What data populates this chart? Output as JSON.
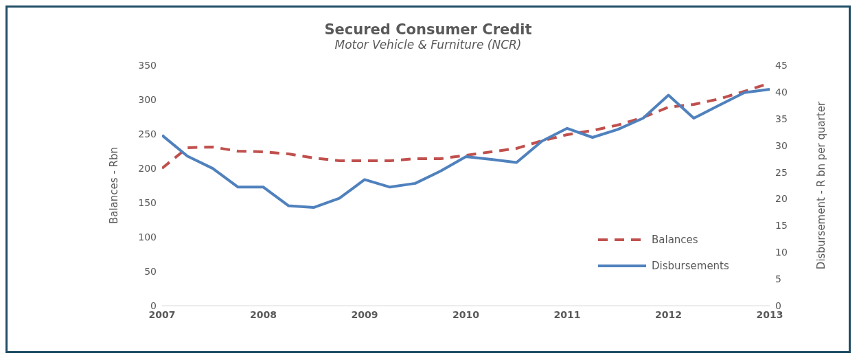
{
  "chart_data": {
    "type": "line",
    "title": "Secured Consumer Credit",
    "subtitle": "Motor Vehicle & Furniture (NCR)",
    "ylabel": "Balances - Rbn",
    "y2label": "Disbursement - R bn per quarter",
    "x": [
      2007,
      2007.25,
      2007.5,
      2007.75,
      2008,
      2008.25,
      2008.5,
      2008.75,
      2009,
      2009.25,
      2009.5,
      2009.75,
      2010,
      2010.25,
      2010.5,
      2010.75,
      2011,
      2011.25,
      2011.5,
      2011.75,
      2012,
      2012.25,
      2012.5,
      2012.75,
      2013
    ],
    "xlim": [
      2007,
      2013
    ],
    "xticks": [
      2007,
      2008,
      2009,
      2010,
      2011,
      2012,
      2013
    ],
    "ylim": [
      0,
      350
    ],
    "yticks": [
      0,
      50,
      100,
      150,
      200,
      250,
      300,
      350
    ],
    "y2lim": [
      0,
      45
    ],
    "y2ticks": [
      0,
      5,
      10,
      15,
      20,
      25,
      30,
      35,
      40,
      45
    ],
    "series": [
      {
        "name": "Balances",
        "color": "#c0504d",
        "line_style": "dashed",
        "values": [
          200,
          230,
          231,
          225,
          224,
          221,
          215,
          211,
          211,
          211,
          214,
          214,
          219,
          224,
          229,
          240,
          249,
          255,
          263,
          274,
          289,
          293,
          301,
          312,
          324
        ]
      },
      {
        "name": "Disbursements",
        "color": "#4f81bd",
        "line_style": "solid",
        "axis": "y2",
        "values": [
          31.9,
          28.0,
          25.7,
          22.2,
          22.2,
          18.7,
          18.4,
          20.1,
          23.6,
          22.2,
          22.9,
          25.2,
          27.9,
          27.4,
          26.8,
          30.8,
          33.2,
          31.5,
          33.0,
          35.1,
          39.4,
          35.1,
          37.5,
          39.9,
          40.5
        ]
      }
    ],
    "marker": "none",
    "grid": false,
    "legend": "right"
  }
}
